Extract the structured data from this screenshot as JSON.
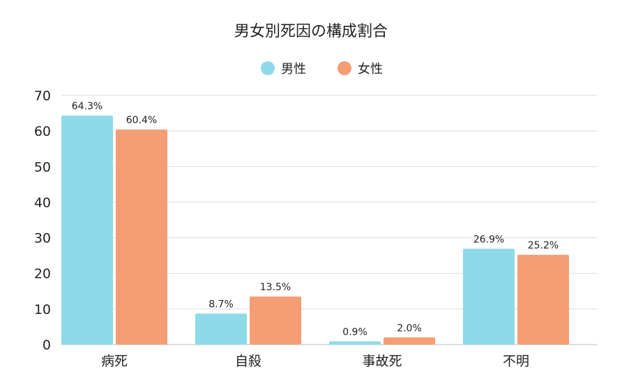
{
  "chart_data": {
    "type": "bar",
    "title": "男女別死因の構成割合",
    "categories": [
      "病死",
      "自殺",
      "事故死",
      "不明"
    ],
    "series": [
      {
        "name": "男性",
        "color": "#8ddbe8",
        "values": [
          64.3,
          8.7,
          0.9,
          26.9
        ],
        "labels": [
          "64.3%",
          "8.7%",
          "0.9%",
          "26.9%"
        ]
      },
      {
        "name": "女性",
        "color": "#f59d74",
        "values": [
          60.4,
          13.5,
          2.0,
          25.2
        ],
        "labels": [
          "60.4%",
          "13.5%",
          "2.0%",
          "25.2%"
        ]
      }
    ],
    "ylim": [
      0,
      70
    ],
    "yticks": [
      0,
      10,
      20,
      30,
      40,
      50,
      60,
      70
    ],
    "grid": true,
    "legend": "top-center"
  }
}
